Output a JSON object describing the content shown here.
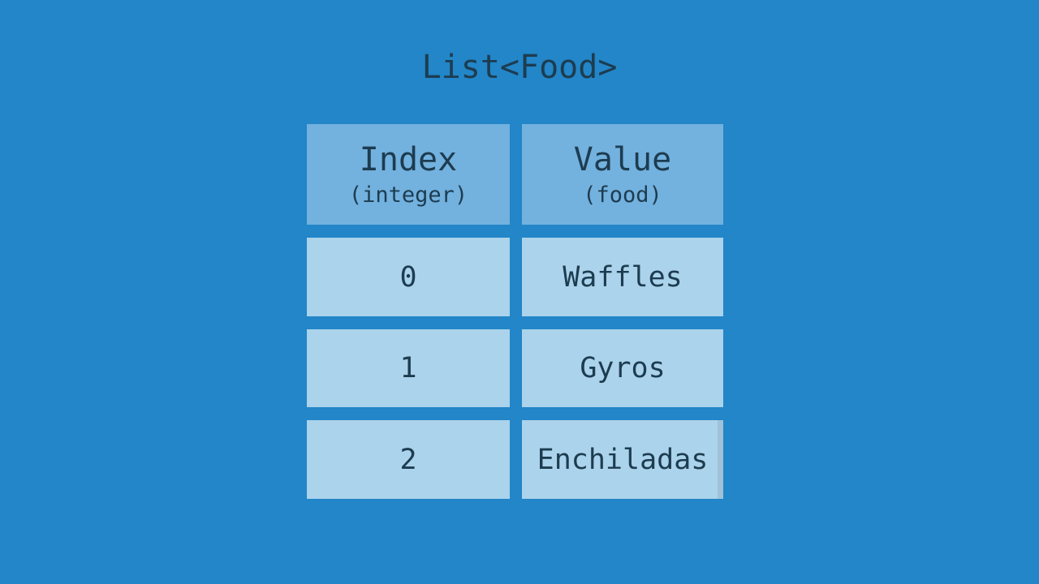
{
  "title": "List<Food>",
  "colors": {
    "bg": "#2286c8",
    "header-fill": "#73b1de",
    "cell-fill": "#abd3eb",
    "text": "#1d3c50",
    "edge-strip": "#9fc2d9"
  },
  "table": {
    "columns": [
      {
        "label": "Index",
        "sublabel": "(integer)"
      },
      {
        "label": "Value",
        "sublabel": "(food)"
      }
    ],
    "rows": [
      {
        "index": "0",
        "value": "Waffles"
      },
      {
        "index": "1",
        "value": "Gyros"
      },
      {
        "index": "2",
        "value": "Enchiladas"
      }
    ]
  }
}
